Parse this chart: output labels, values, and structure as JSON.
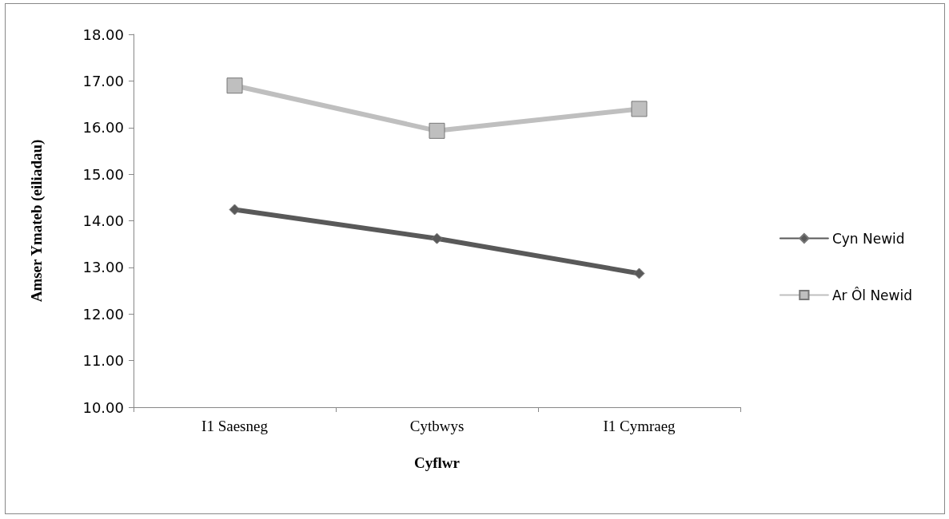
{
  "chart_data": {
    "type": "line",
    "xlabel": "Cyflwr",
    "ylabel": "Amser Ymateb (eiliadau)",
    "categories": [
      "I1 Saesneg",
      "Cytbwys",
      "I1 Cymraeg"
    ],
    "series": [
      {
        "name": "Cyn Newid",
        "color": "#595959",
        "marker": "diamond",
        "values": [
          14.24,
          13.62,
          12.87
        ]
      },
      {
        "name": "Ar Ôl Newid",
        "color": "#bfbfbf",
        "marker": "square",
        "values": [
          16.9,
          15.93,
          16.4
        ]
      }
    ],
    "ylim": [
      10,
      18
    ],
    "yticks": [
      {
        "value": 10,
        "label": "10.00"
      },
      {
        "value": 11,
        "label": "11.00"
      },
      {
        "value": 12,
        "label": "12.00"
      },
      {
        "value": 13,
        "label": "13.00"
      },
      {
        "value": 14,
        "label": "14.00"
      },
      {
        "value": 15,
        "label": "15.00"
      },
      {
        "value": 16,
        "label": "16.00"
      },
      {
        "value": 17,
        "label": "17.00"
      },
      {
        "value": 18,
        "label": "18.00"
      }
    ],
    "grid": false,
    "legend": "right"
  }
}
